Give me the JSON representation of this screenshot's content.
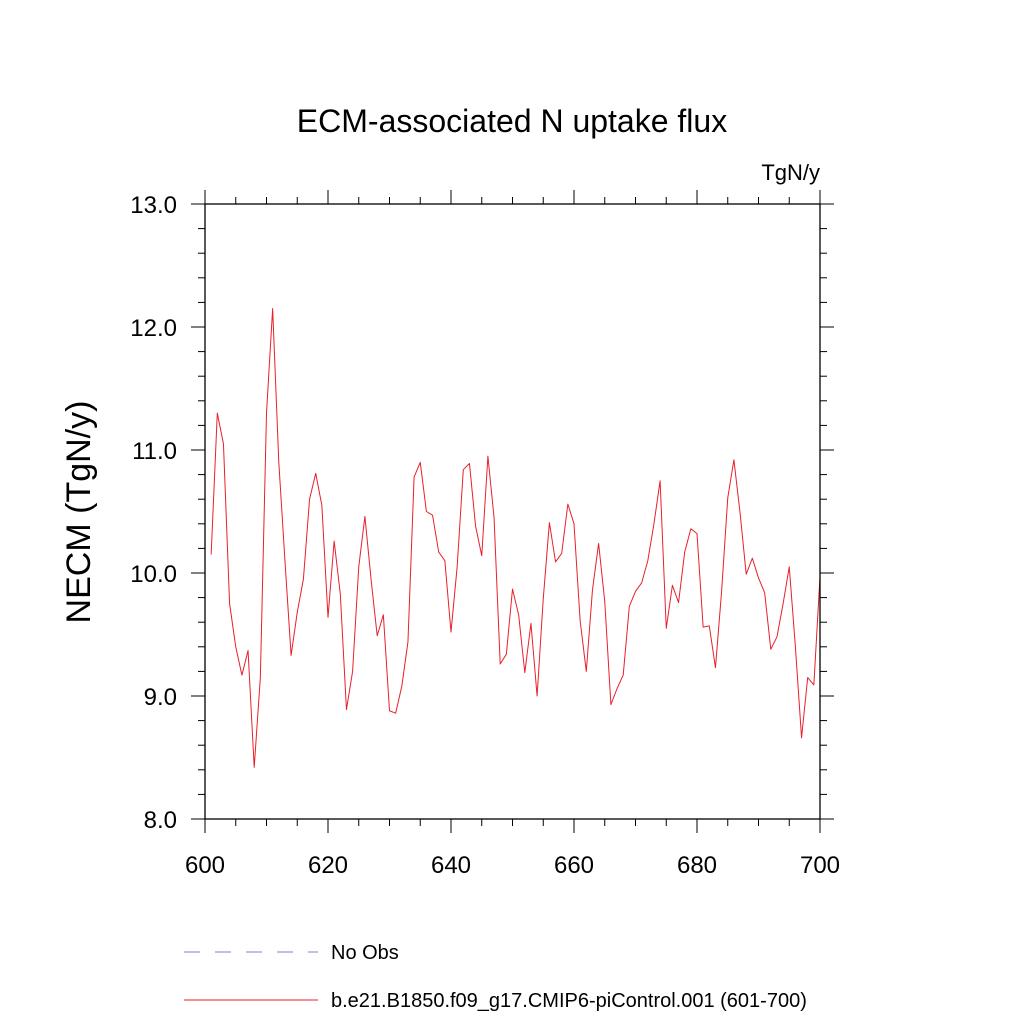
{
  "chart_data": {
    "type": "line",
    "title": "ECM-associated N uptake flux",
    "units": "TgN/y",
    "xlabel": "",
    "ylabel": "NECM  (TgN/y)",
    "xlim": [
      600,
      700
    ],
    "ylim": [
      8.0,
      13.0
    ],
    "x_ticks": [
      600,
      620,
      640,
      660,
      680,
      700
    ],
    "x_tick_labels": [
      "600",
      "620",
      "640",
      "660",
      "680",
      "700"
    ],
    "y_ticks": [
      8.0,
      9.0,
      10.0,
      11.0,
      12.0,
      13.0
    ],
    "y_tick_labels": [
      "8.0",
      "9.0",
      "10.0",
      "11.0",
      "12.0",
      "13.0"
    ],
    "x_start": 601,
    "x_step": 1,
    "series": [
      {
        "name": "b.e21.B1850.f09_g17.CMIP6-piControl.001 (601-700)",
        "color": "#e8202a",
        "dash": "solid",
        "values": [
          10.15,
          11.3,
          11.05,
          9.75,
          9.4,
          9.17,
          9.37,
          8.42,
          9.15,
          11.3,
          12.15,
          10.9,
          10.1,
          9.33,
          9.68,
          9.95,
          10.6,
          10.81,
          10.55,
          9.64,
          10.26,
          9.83,
          8.89,
          9.2,
          10.05,
          10.46,
          9.95,
          9.49,
          9.66,
          8.88,
          8.86,
          9.08,
          9.44,
          10.78,
          10.9,
          10.5,
          10.47,
          10.17,
          10.1,
          9.52,
          10.05,
          10.84,
          10.89,
          10.38,
          10.14,
          10.95,
          10.45,
          9.26,
          9.34,
          9.87,
          9.66,
          9.19,
          9.59,
          9.0,
          9.79,
          10.41,
          10.09,
          10.16,
          10.56,
          10.4,
          9.61,
          9.2,
          9.86,
          10.24,
          9.77,
          8.93,
          9.06,
          9.17,
          9.73,
          9.85,
          9.92,
          10.1,
          10.4,
          10.75,
          9.55,
          9.9,
          9.76,
          10.17,
          10.36,
          10.32,
          9.56,
          9.57,
          9.23,
          9.85,
          10.61,
          10.92,
          10.49,
          9.99,
          10.12,
          9.96,
          9.84,
          9.38,
          9.48,
          9.75,
          10.05,
          9.4,
          8.66,
          9.15,
          9.09,
          9.97
        ]
      }
    ],
    "legend": {
      "placement": "bottom",
      "entries": [
        {
          "label": "No Obs",
          "color": "#8080c0",
          "dash": "dashed"
        },
        {
          "label": "b.e21.B1850.f09_g17.CMIP6-piControl.001 (601-700)",
          "color": "#e8202a",
          "dash": "solid"
        }
      ]
    }
  }
}
